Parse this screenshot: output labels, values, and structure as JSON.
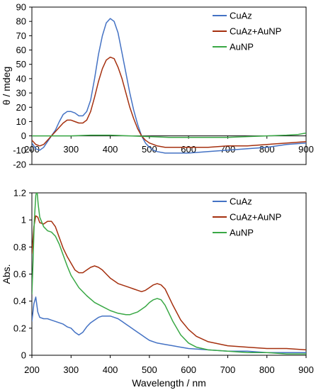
{
  "chart_data": [
    {
      "type": "line",
      "xlabel": "",
      "ylabel": "θ / mdeg",
      "xlim": [
        200,
        900
      ],
      "ylim": [
        -20,
        90
      ],
      "xticks": [
        200,
        300,
        400,
        500,
        600,
        700,
        800,
        900
      ],
      "yticks": [
        -20,
        -10,
        0,
        10,
        20,
        30,
        40,
        50,
        60,
        70,
        80,
        90
      ],
      "zero_line": true,
      "legend_position": "top-right",
      "series": [
        {
          "name": "CuAz",
          "color": "#4472c4",
          "x": [
            200,
            210,
            220,
            230,
            240,
            250,
            260,
            270,
            280,
            290,
            300,
            310,
            320,
            330,
            340,
            350,
            360,
            370,
            380,
            390,
            400,
            410,
            420,
            430,
            440,
            450,
            460,
            470,
            480,
            490,
            500,
            510,
            520,
            540,
            560,
            580,
            600,
            650,
            700,
            750,
            800,
            850,
            900
          ],
          "y": [
            -5,
            -9,
            -10,
            -8,
            -4,
            0,
            4,
            10,
            15,
            17,
            17,
            16,
            14,
            14,
            17,
            25,
            40,
            57,
            70,
            79,
            82,
            80,
            72,
            58,
            44,
            30,
            18,
            8,
            0,
            -5,
            -8,
            -10,
            -11,
            -12,
            -12,
            -12,
            -12,
            -11,
            -10,
            -9,
            -8,
            -6,
            -5
          ]
        },
        {
          "name": "CuAz+AuNP",
          "color": "#a5300f",
          "x": [
            200,
            210,
            220,
            230,
            240,
            250,
            260,
            270,
            280,
            290,
            300,
            310,
            320,
            330,
            340,
            350,
            360,
            370,
            380,
            390,
            400,
            410,
            420,
            430,
            440,
            450,
            460,
            470,
            480,
            490,
            500,
            510,
            520,
            540,
            560,
            580,
            600,
            650,
            700,
            750,
            800,
            850,
            900
          ],
          "y": [
            -3,
            -6,
            -7,
            -6,
            -3,
            0,
            3,
            6,
            9,
            11,
            11,
            10,
            9,
            9,
            11,
            17,
            27,
            38,
            47,
            53,
            55,
            54,
            48,
            40,
            30,
            20,
            12,
            5,
            0,
            -3,
            -5,
            -6,
            -7,
            -8,
            -8,
            -8,
            -8,
            -8,
            -7,
            -7,
            -6,
            -5,
            -4
          ]
        },
        {
          "name": "AuNP",
          "color": "#39a845",
          "x": [
            200,
            250,
            300,
            350,
            400,
            450,
            500,
            550,
            600,
            650,
            700,
            750,
            800,
            850,
            880,
            900
          ],
          "y": [
            0,
            0,
            0,
            0.5,
            0.5,
            0,
            -0.5,
            -1,
            -1,
            -1,
            -1,
            -0.5,
            0,
            0.5,
            1,
            2
          ]
        }
      ]
    },
    {
      "type": "line",
      "xlabel": "Wavelength / nm",
      "ylabel": "Abs.",
      "xlim": [
        200,
        900
      ],
      "ylim": [
        0,
        1.2
      ],
      "xticks": [
        200,
        300,
        400,
        500,
        600,
        700,
        800,
        900
      ],
      "yticks": [
        0,
        0.2,
        0.4,
        0.6,
        0.8,
        1,
        1.2
      ],
      "legend_position": "top-right",
      "series": [
        {
          "name": "CuAz",
          "color": "#4472c4",
          "x": [
            200,
            205,
            210,
            215,
            220,
            230,
            240,
            250,
            260,
            270,
            280,
            290,
            300,
            310,
            320,
            330,
            340,
            350,
            360,
            370,
            380,
            390,
            400,
            410,
            420,
            430,
            440,
            450,
            460,
            470,
            480,
            490,
            500,
            520,
            540,
            560,
            580,
            600,
            650,
            700,
            750,
            800,
            850,
            900
          ],
          "y": [
            0.25,
            0.38,
            0.43,
            0.32,
            0.28,
            0.27,
            0.27,
            0.26,
            0.25,
            0.24,
            0.23,
            0.21,
            0.2,
            0.17,
            0.15,
            0.17,
            0.21,
            0.24,
            0.26,
            0.28,
            0.29,
            0.29,
            0.29,
            0.28,
            0.27,
            0.25,
            0.23,
            0.21,
            0.19,
            0.17,
            0.15,
            0.13,
            0.11,
            0.09,
            0.08,
            0.07,
            0.06,
            0.05,
            0.04,
            0.03,
            0.03,
            0.02,
            0.02,
            0.02
          ]
        },
        {
          "name": "CuAz+AuNP",
          "color": "#a5300f",
          "x": [
            200,
            205,
            210,
            215,
            220,
            230,
            240,
            250,
            260,
            270,
            280,
            290,
            300,
            310,
            320,
            330,
            340,
            350,
            360,
            370,
            380,
            390,
            400,
            410,
            420,
            430,
            440,
            450,
            460,
            470,
            480,
            490,
            500,
            510,
            520,
            530,
            540,
            550,
            560,
            580,
            600,
            620,
            650,
            700,
            750,
            800,
            850,
            900
          ],
          "y": [
            0.75,
            0.95,
            1.03,
            1.02,
            0.98,
            0.97,
            0.99,
            0.99,
            0.95,
            0.87,
            0.79,
            0.73,
            0.68,
            0.63,
            0.61,
            0.61,
            0.63,
            0.65,
            0.66,
            0.65,
            0.63,
            0.6,
            0.57,
            0.55,
            0.53,
            0.52,
            0.51,
            0.5,
            0.49,
            0.48,
            0.47,
            0.48,
            0.5,
            0.52,
            0.53,
            0.52,
            0.49,
            0.43,
            0.37,
            0.26,
            0.19,
            0.14,
            0.1,
            0.07,
            0.06,
            0.05,
            0.05,
            0.04
          ]
        },
        {
          "name": "AuNP",
          "color": "#39a845",
          "x": [
            200,
            203,
            206,
            210,
            213,
            216,
            220,
            230,
            240,
            250,
            260,
            270,
            280,
            290,
            300,
            320,
            340,
            360,
            380,
            400,
            420,
            440,
            450,
            460,
            470,
            480,
            490,
            500,
            510,
            520,
            530,
            540,
            550,
            560,
            580,
            600,
            620,
            650,
            700,
            750,
            800,
            850,
            900
          ],
          "y": [
            0.45,
            0.7,
            0.98,
            1.18,
            1.22,
            1.12,
            1.02,
            0.95,
            0.92,
            0.91,
            0.88,
            0.82,
            0.74,
            0.66,
            0.59,
            0.5,
            0.44,
            0.39,
            0.36,
            0.33,
            0.31,
            0.3,
            0.3,
            0.31,
            0.32,
            0.34,
            0.36,
            0.39,
            0.41,
            0.42,
            0.41,
            0.37,
            0.31,
            0.25,
            0.15,
            0.09,
            0.06,
            0.04,
            0.03,
            0.02,
            0.02,
            0.01,
            0.01
          ]
        }
      ]
    }
  ]
}
